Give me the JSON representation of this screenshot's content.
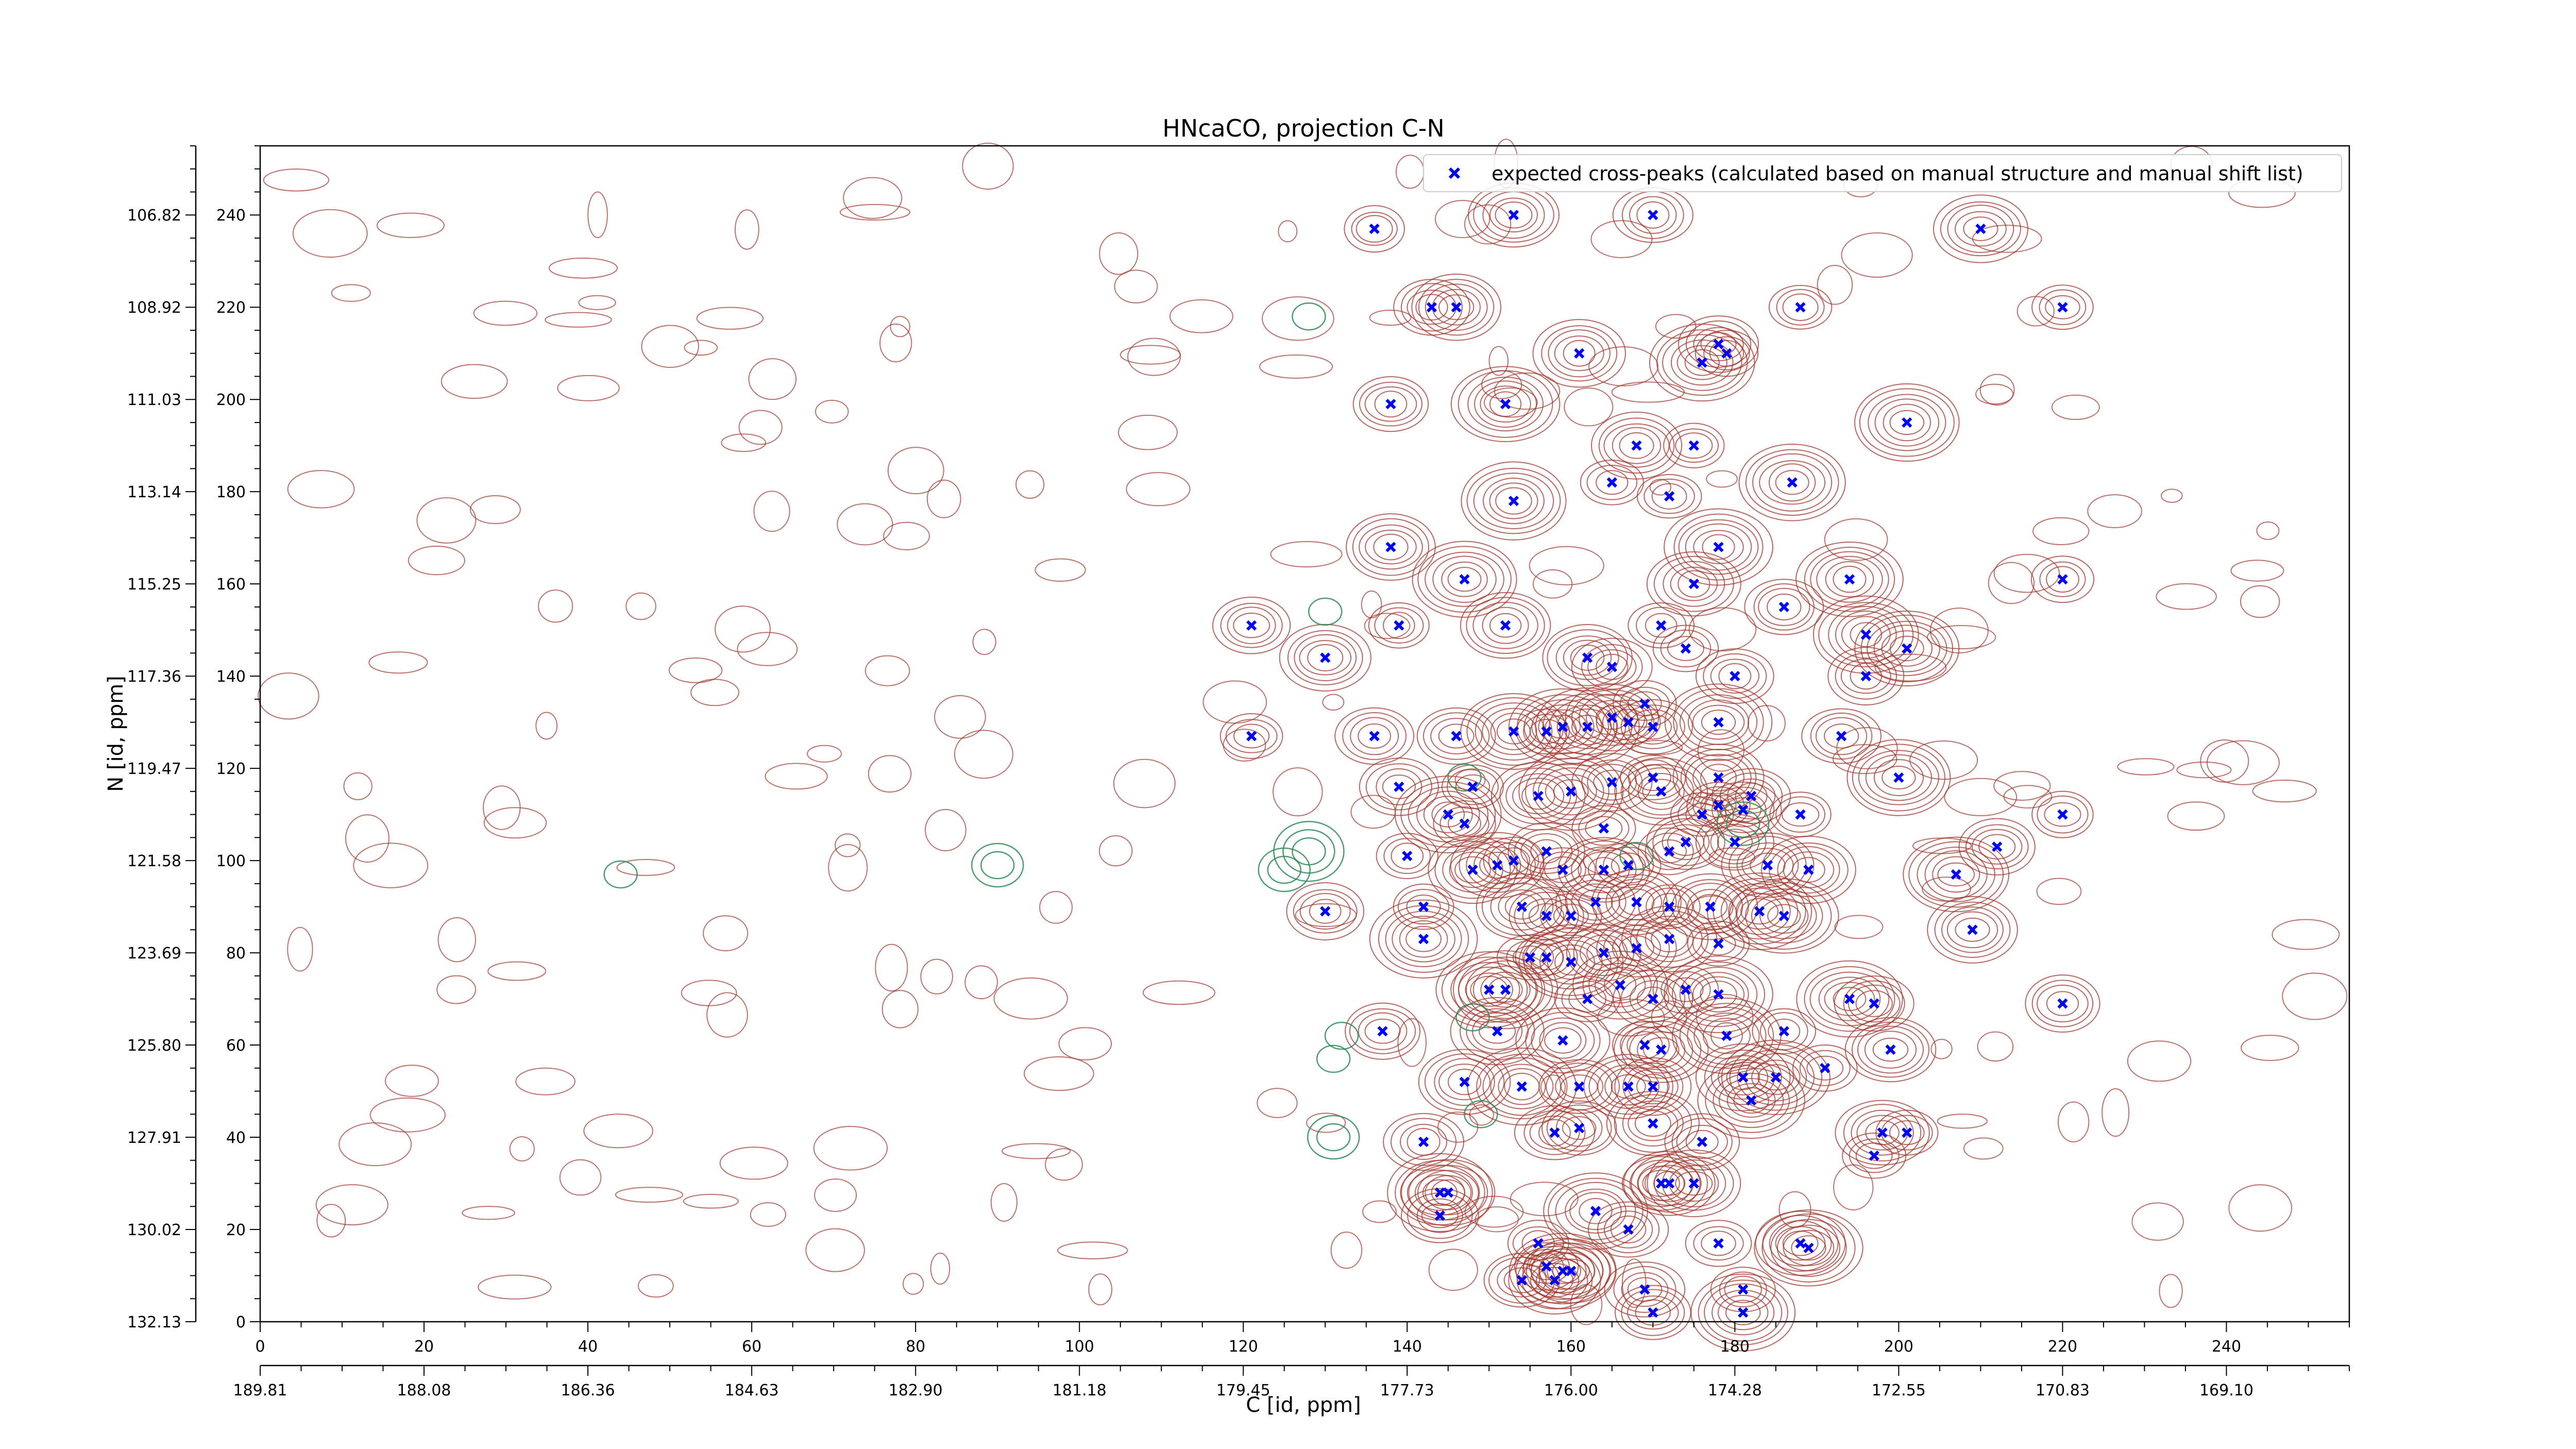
{
  "chart_data": {
    "type": "scatter",
    "title": "HNcaCO, projection C-N",
    "xlabel": "C [id, ppm]",
    "ylabel": "N [id, ppm]",
    "xlim": [
      0,
      255
    ],
    "ylim": [
      0,
      255
    ],
    "grid": false,
    "legend_position": "top-right",
    "x_ticks": [
      0,
      20,
      40,
      60,
      80,
      100,
      120,
      140,
      160,
      180,
      200,
      220,
      240
    ],
    "y_ticks": [
      0,
      20,
      40,
      60,
      80,
      100,
      120,
      140,
      160,
      180,
      200,
      220,
      240
    ],
    "x_ppm_tick_labels": [
      "189.81",
      "188.08",
      "186.36",
      "184.63",
      "182.90",
      "181.18",
      "179.45",
      "177.73",
      "176.00",
      "174.28",
      "172.55",
      "170.83",
      "169.10"
    ],
    "y_ppm_tick_labels": [
      "132.13",
      "130.02",
      "127.91",
      "125.80",
      "123.69",
      "121.58",
      "119.47",
      "117.36",
      "115.25",
      "113.14",
      "111.03",
      "108.92",
      "106.82"
    ],
    "colors": {
      "marker": "#0000ff",
      "positive_contour": "#a0362b",
      "negative_contour": "#2e8b57"
    },
    "series": [
      {
        "name": "expected cross-peaks (calculated based on manual structure and manual shift list)",
        "marker": "x",
        "points": [
          [
            136,
            237
          ],
          [
            153,
            240
          ],
          [
            170,
            240
          ],
          [
            210,
            237
          ],
          [
            143,
            220
          ],
          [
            146,
            220
          ],
          [
            188,
            220
          ],
          [
            220,
            220
          ],
          [
            161,
            210
          ],
          [
            176,
            208
          ],
          [
            179,
            210
          ],
          [
            178,
            212
          ],
          [
            138,
            199
          ],
          [
            152,
            199
          ],
          [
            201,
            195
          ],
          [
            168,
            190
          ],
          [
            175,
            190
          ],
          [
            165,
            182
          ],
          [
            187,
            182
          ],
          [
            172,
            179
          ],
          [
            153,
            178
          ],
          [
            138,
            168
          ],
          [
            178,
            168
          ],
          [
            147,
            161
          ],
          [
            175,
            160
          ],
          [
            194,
            161
          ],
          [
            220,
            161
          ],
          [
            121,
            151
          ],
          [
            139,
            151
          ],
          [
            152,
            151
          ],
          [
            171,
            151
          ],
          [
            186,
            155
          ],
          [
            196,
            149
          ],
          [
            201,
            146
          ],
          [
            130,
            144
          ],
          [
            162,
            144
          ],
          [
            174,
            146
          ],
          [
            165,
            142
          ],
          [
            180,
            140
          ],
          [
            196,
            140
          ],
          [
            169,
            134
          ],
          [
            121,
            127
          ],
          [
            136,
            127
          ],
          [
            146,
            127
          ],
          [
            153,
            128
          ],
          [
            157,
            128
          ],
          [
            159,
            129
          ],
          [
            162,
            129
          ],
          [
            165,
            131
          ],
          [
            167,
            130
          ],
          [
            170,
            129
          ],
          [
            178,
            130
          ],
          [
            193,
            127
          ],
          [
            139,
            116
          ],
          [
            148,
            116
          ],
          [
            156,
            114
          ],
          [
            160,
            115
          ],
          [
            165,
            117
          ],
          [
            170,
            118
          ],
          [
            171,
            115
          ],
          [
            178,
            118
          ],
          [
            182,
            114
          ],
          [
            178,
            112
          ],
          [
            200,
            118
          ],
          [
            145,
            110
          ],
          [
            147,
            108
          ],
          [
            164,
            107
          ],
          [
            176,
            110
          ],
          [
            181,
            111
          ],
          [
            188,
            110
          ],
          [
            220,
            110
          ],
          [
            140,
            101
          ],
          [
            148,
            98
          ],
          [
            151,
            99
          ],
          [
            153,
            100
          ],
          [
            157,
            102
          ],
          [
            159,
            98
          ],
          [
            164,
            98
          ],
          [
            167,
            99
          ],
          [
            172,
            102
          ],
          [
            174,
            104
          ],
          [
            180,
            104
          ],
          [
            184,
            99
          ],
          [
            189,
            98
          ],
          [
            212,
            103
          ],
          [
            207,
            97
          ],
          [
            130,
            89
          ],
          [
            142,
            90
          ],
          [
            154,
            90
          ],
          [
            157,
            88
          ],
          [
            160,
            88
          ],
          [
            163,
            91
          ],
          [
            168,
            91
          ],
          [
            172,
            90
          ],
          [
            177,
            90
          ],
          [
            183,
            89
          ],
          [
            186,
            88
          ],
          [
            209,
            85
          ],
          [
            142,
            83
          ],
          [
            155,
            79
          ],
          [
            157,
            79
          ],
          [
            160,
            78
          ],
          [
            164,
            80
          ],
          [
            168,
            81
          ],
          [
            172,
            83
          ],
          [
            178,
            82
          ],
          [
            150,
            72
          ],
          [
            152,
            72
          ],
          [
            162,
            70
          ],
          [
            166,
            73
          ],
          [
            174,
            72
          ],
          [
            178,
            71
          ],
          [
            170,
            70
          ],
          [
            194,
            70
          ],
          [
            197,
            69
          ],
          [
            220,
            69
          ],
          [
            137,
            63
          ],
          [
            151,
            63
          ],
          [
            159,
            61
          ],
          [
            169,
            60
          ],
          [
            171,
            59
          ],
          [
            179,
            62
          ],
          [
            186,
            63
          ],
          [
            199,
            59
          ],
          [
            147,
            52
          ],
          [
            154,
            51
          ],
          [
            161,
            51
          ],
          [
            167,
            51
          ],
          [
            170,
            51
          ],
          [
            181,
            53
          ],
          [
            185,
            53
          ],
          [
            191,
            55
          ],
          [
            182,
            48
          ],
          [
            142,
            39
          ],
          [
            158,
            41
          ],
          [
            161,
            42
          ],
          [
            170,
            43
          ],
          [
            176,
            39
          ],
          [
            198,
            41
          ],
          [
            201,
            41
          ],
          [
            197,
            36
          ],
          [
            144,
            28
          ],
          [
            145,
            28
          ],
          [
            144,
            23
          ],
          [
            163,
            24
          ],
          [
            171,
            30
          ],
          [
            172,
            30
          ],
          [
            175,
            30
          ],
          [
            167,
            20
          ],
          [
            178,
            17
          ],
          [
            188,
            17
          ],
          [
            189,
            16
          ],
          [
            156,
            17
          ],
          [
            157,
            12
          ],
          [
            159,
            11
          ],
          [
            160,
            11
          ],
          [
            154,
            9
          ],
          [
            158,
            9
          ],
          [
            169,
            7
          ],
          [
            181,
            7
          ],
          [
            170,
            2
          ],
          [
            181,
            2
          ]
        ]
      }
    ]
  }
}
